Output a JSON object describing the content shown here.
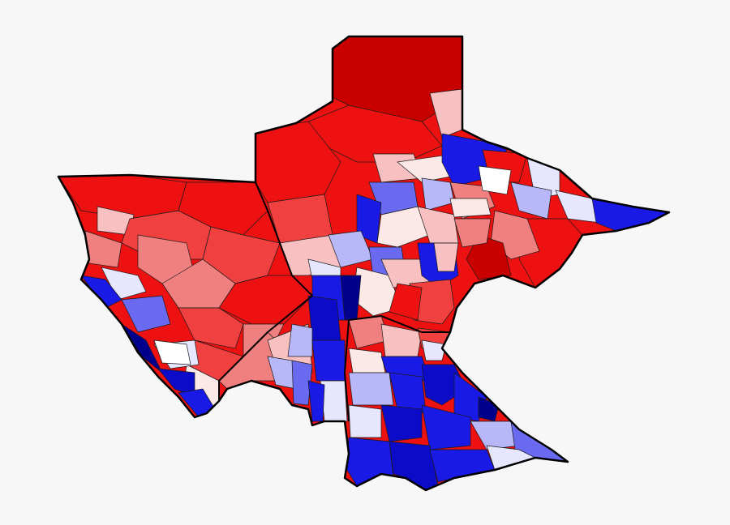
{
  "map": {
    "type": "choropleth",
    "background": "#f7f7f7",
    "palette": {
      "dark_red": "#c80000",
      "red": "#ee1111",
      "medium_red": "#f04040",
      "light_red": "#f08080",
      "pale_red": "#f8c0c0",
      "very_pale_red": "#fde8e8",
      "white": "#ffffff",
      "very_pale_blue": "#e6e6ff",
      "pale_blue": "#b8b8f8",
      "light_blue": "#6a6af0",
      "blue": "#1a1ae6",
      "medium_blue": "#0c0cc8",
      "dark_blue": "#00008c"
    }
  }
}
